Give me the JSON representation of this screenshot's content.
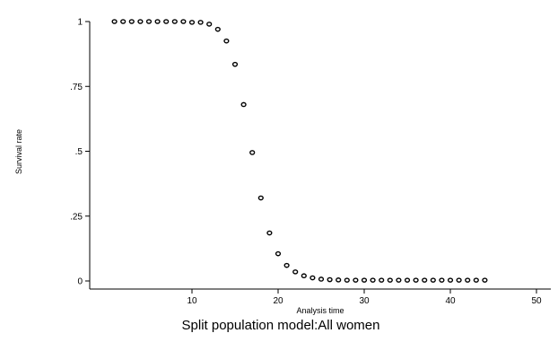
{
  "chart_data": {
    "type": "scatter",
    "title": "",
    "caption": "Split population model:All women",
    "xlabel": "Analysis time",
    "ylabel": "Survival rate",
    "xlim": [
      0,
      50
    ],
    "ylim": [
      0,
      1
    ],
    "x_ticks": [
      10,
      20,
      30,
      40,
      50
    ],
    "x_tick_labels": [
      "10",
      "20",
      "30",
      "40",
      "50"
    ],
    "y_ticks": [
      0,
      0.25,
      0.5,
      0.75,
      1
    ],
    "y_tick_labels": [
      "0",
      ".25",
      ".5",
      ".75",
      "1"
    ],
    "grid": false,
    "legend": "none",
    "marker": "hollow-circle",
    "colors": {
      "marker": "#000000",
      "axis": "#000000",
      "background": "#ffffff"
    },
    "series": [
      {
        "x": [
          1,
          2,
          3,
          4,
          5,
          6,
          7,
          8,
          9,
          10,
          11,
          12,
          13,
          14,
          15,
          16,
          17,
          18,
          19,
          20,
          21,
          22,
          23,
          24,
          25,
          26,
          27,
          28,
          29,
          30,
          31,
          32,
          33,
          34,
          35,
          36,
          37,
          38,
          39,
          40,
          41,
          42,
          43,
          44
        ],
        "y": [
          1.0,
          1.0,
          1.0,
          1.0,
          1.0,
          1.0,
          1.0,
          1.0,
          1.0,
          0.997,
          0.997,
          0.99,
          0.97,
          0.925,
          0.835,
          0.68,
          0.495,
          0.32,
          0.185,
          0.105,
          0.06,
          0.035,
          0.02,
          0.012,
          0.007,
          0.005,
          0.004,
          0.003,
          0.003,
          0.003,
          0.003,
          0.003,
          0.003,
          0.003,
          0.003,
          0.003,
          0.003,
          0.003,
          0.003,
          0.003,
          0.003,
          0.003,
          0.003,
          0.003
        ]
      }
    ]
  }
}
